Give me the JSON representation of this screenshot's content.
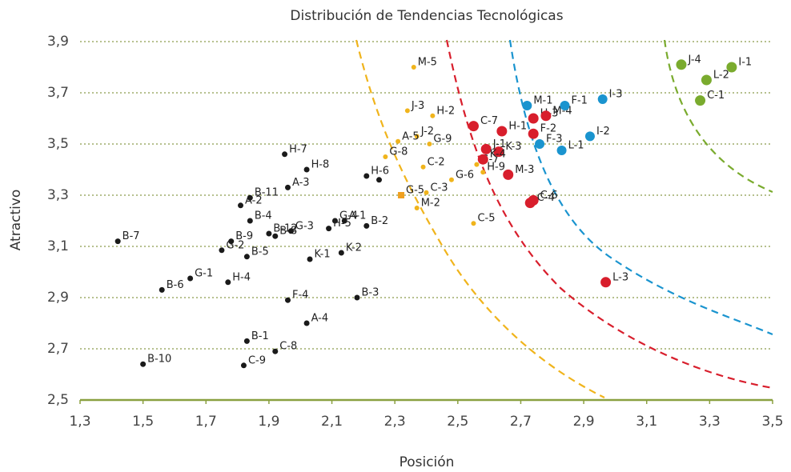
{
  "chart_data": {
    "type": "scatter",
    "title": "Distribución de Tendencias Tecnológicas",
    "xlabel": "Posición",
    "ylabel": "Atractivo",
    "xlim": [
      1.3,
      3.5
    ],
    "xticks": [
      {
        "value": 1.3,
        "label": "1,3"
      },
      {
        "value": 1.5,
        "label": "1,5"
      },
      {
        "value": 1.7,
        "label": "1,7"
      },
      {
        "value": 1.9,
        "label": "1,9"
      },
      {
        "value": 2.1,
        "label": "2,1"
      },
      {
        "value": 2.3,
        "label": "2,3"
      },
      {
        "value": 2.5,
        "label": "2,5"
      },
      {
        "value": 2.7,
        "label": "2,7"
      },
      {
        "value": 2.9,
        "label": "2,9"
      },
      {
        "value": 3.1,
        "label": "3,1"
      },
      {
        "value": 3.3,
        "label": "3,3"
      },
      {
        "value": 3.5,
        "label": "3,5"
      }
    ],
    "ylim": [
      2.5,
      3.9
    ],
    "yticks": [
      {
        "value": 2.5,
        "label": "2,5"
      },
      {
        "value": 2.7,
        "label": "2,7"
      },
      {
        "value": 2.9,
        "label": "2,9"
      },
      {
        "value": 3.1,
        "label": "3,1"
      },
      {
        "value": 3.3,
        "label": "3,3"
      },
      {
        "value": 3.5,
        "label": "3,5"
      },
      {
        "value": 3.7,
        "label": "3,7"
      },
      {
        "value": 3.9,
        "label": "3,9"
      }
    ],
    "grid": true,
    "series": [
      {
        "color": "#1a1a1a",
        "marker": "circle",
        "labels": [
          "B-7",
          "B-6",
          "B-10",
          "G-1",
          "H-4",
          "G-2",
          "B-9",
          "B-5",
          "B-12",
          "B-8",
          "B-4",
          "A-2",
          "B-11",
          "G-3",
          "H-7",
          "A-3",
          "H-8",
          "G-4",
          "A-1",
          "H-5",
          "B-2",
          "H-6",
          null,
          "K-1",
          "K-2",
          "B-3",
          "F-4",
          "A-4",
          "B-1",
          "C-8",
          "C-9"
        ],
        "x": [
          1.42,
          1.56,
          1.5,
          1.65,
          1.77,
          1.75,
          1.78,
          1.83,
          1.9,
          1.92,
          1.84,
          1.81,
          1.84,
          1.97,
          1.95,
          1.96,
          2.02,
          2.11,
          2.14,
          2.09,
          2.21,
          2.21,
          2.25,
          2.03,
          2.13,
          2.18,
          1.96,
          2.02,
          1.83,
          1.92,
          1.82
        ],
        "y": [
          3.12,
          2.93,
          2.64,
          2.975,
          2.96,
          3.085,
          3.12,
          3.06,
          3.15,
          3.14,
          3.2,
          3.26,
          3.29,
          3.16,
          3.46,
          3.33,
          3.4,
          3.2,
          3.2,
          3.17,
          3.18,
          3.375,
          3.36,
          3.05,
          3.075,
          2.9,
          2.89,
          2.8,
          2.73,
          2.69,
          2.635
        ]
      },
      {
        "color": "#f0b41c",
        "marker": "circle",
        "labels": [
          "M-5",
          "J-3",
          "H-2",
          "J-2",
          "A-5",
          "G-9",
          "G-8",
          "C-2",
          "C-3",
          "M-2",
          "C-5",
          "G-6",
          "G-7",
          "H-9"
        ],
        "x": [
          2.36,
          2.34,
          2.42,
          2.37,
          2.31,
          2.41,
          2.27,
          2.39,
          2.4,
          2.37,
          2.55,
          2.48,
          2.56,
          2.58
        ],
        "y": [
          3.8,
          3.63,
          3.61,
          3.53,
          3.51,
          3.5,
          3.45,
          3.41,
          3.31,
          3.25,
          3.19,
          3.36,
          3.42,
          3.39
        ]
      },
      {
        "color": "#f0a020",
        "marker": "square",
        "labels": [
          "G-5"
        ],
        "x": [
          2.32
        ],
        "y": [
          3.3
        ]
      },
      {
        "color": "#d81e2c",
        "marker": "circle",
        "labels": [
          "C-7",
          "H-3",
          "M-4",
          "H-1",
          "F-2",
          "J-1",
          "K-3",
          "K-4",
          "M-3",
          "C-6",
          "C-4",
          "L-3"
        ],
        "x": [
          2.55,
          2.74,
          2.78,
          2.64,
          2.74,
          2.59,
          2.63,
          2.58,
          2.66,
          2.74,
          2.73,
          2.97
        ],
        "y": [
          3.57,
          3.6,
          3.61,
          3.55,
          3.54,
          3.48,
          3.47,
          3.44,
          3.38,
          3.28,
          3.27,
          2.96
        ]
      },
      {
        "color": "#1a94cf",
        "marker": "circle",
        "labels": [
          "M-1",
          "F-1",
          "I-3",
          "F-3",
          "I-2",
          "L-1"
        ],
        "x": [
          2.72,
          2.84,
          2.96,
          2.76,
          2.92,
          2.83
        ],
        "y": [
          3.65,
          3.65,
          3.675,
          3.5,
          3.53,
          3.475
        ]
      },
      {
        "color": "#7aab2e",
        "marker": "circle",
        "labels": [
          "J-4",
          "I-1",
          "L-2",
          "C-1"
        ],
        "x": [
          3.21,
          3.37,
          3.29,
          3.27
        ],
        "y": [
          3.81,
          3.8,
          3.75,
          3.67
        ]
      }
    ]
  }
}
